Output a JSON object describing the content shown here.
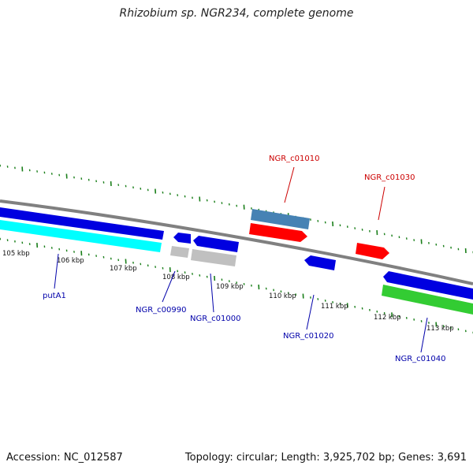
{
  "title": "Rhizobium sp. NGR234, complete genome",
  "footer": {
    "accession": "Accession: NC_012587",
    "summary": "Topology: circular; Length: 3,925,702 bp; Genes: 3,691"
  },
  "colors": {
    "backbone": "#808080",
    "tick": "#1a7f1a",
    "ruler_label": "#111111",
    "gene_label_blue": "#0000aa",
    "gene_label_red": "#cc0000"
  },
  "ruler_labels": [
    "105 kbp",
    "106 kbp",
    "107 kbp",
    "108 kbp",
    "109 kbp",
    "110 kbp",
    "111 kbp",
    "112 kbp",
    "113 kbp"
  ],
  "gene_labels": [
    {
      "text": "putA1",
      "color": "blue"
    },
    {
      "text": "NGR_c00990",
      "color": "blue"
    },
    {
      "text": "NGR_c01000",
      "color": "blue"
    },
    {
      "text": "NGR_c01010",
      "color": "red"
    },
    {
      "text": "NGR_c01020",
      "color": "blue"
    },
    {
      "text": "NGR_c01030",
      "color": "red"
    },
    {
      "text": "NGR_c01040",
      "color": "blue"
    }
  ],
  "features": [
    {
      "name": "blue-cds-left",
      "color": "#0000e0"
    },
    {
      "name": "cyan-gene-left",
      "color": "#00ffff"
    },
    {
      "name": "blue-cds-small",
      "color": "#0000e0"
    },
    {
      "name": "grey-gene-small",
      "color": "#c0c0c0"
    },
    {
      "name": "blue-cds-c01000",
      "color": "#0000e0"
    },
    {
      "name": "grey-gene-c01000",
      "color": "#c0c0c0"
    },
    {
      "name": "steelblue-gene-c01010",
      "color": "#4682b4"
    },
    {
      "name": "red-cds-c01010",
      "color": "#ff0000"
    },
    {
      "name": "blue-cds-c01020",
      "color": "#0000e0"
    },
    {
      "name": "red-cds-c01030",
      "color": "#ff0000"
    },
    {
      "name": "blue-cds-right",
      "color": "#0000e0"
    },
    {
      "name": "green-gene-c01040",
      "color": "#33cc33"
    }
  ]
}
